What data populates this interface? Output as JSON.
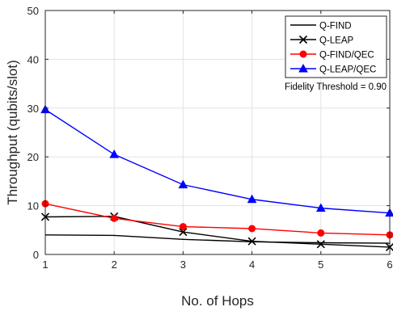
{
  "chart_data": {
    "type": "line",
    "title": "",
    "xlabel": "No. of Hops",
    "ylabel": "Throughput (qubits/slot)",
    "x": [
      1,
      2,
      3,
      4,
      5,
      6
    ],
    "xlim": [
      1,
      6
    ],
    "ylim": [
      0,
      50
    ],
    "xticks": [
      "1",
      "2",
      "3",
      "4",
      "5",
      "6"
    ],
    "yticks": [
      "0",
      "10",
      "20",
      "30",
      "40",
      "50"
    ],
    "grid": true,
    "legend_position": "top-right",
    "annotation": "Fidelity Threshold = 0.90",
    "series": [
      {
        "name": "Q-FIND",
        "color": "#000000",
        "marker": "none",
        "values": [
          4.0,
          3.9,
          3.1,
          2.6,
          2.4,
          2.3
        ]
      },
      {
        "name": "Q-LEAP",
        "color": "#000000",
        "marker": "x",
        "values": [
          7.7,
          7.8,
          4.6,
          2.7,
          2.1,
          1.5
        ]
      },
      {
        "name": "Q-FIND/QEC",
        "color": "#ff0000",
        "marker": "circle",
        "values": [
          10.4,
          7.4,
          5.7,
          5.3,
          4.4,
          4.0
        ]
      },
      {
        "name": "Q-LEAP/QEC",
        "color": "#0000ff",
        "marker": "triangle",
        "values": [
          29.7,
          20.5,
          14.3,
          11.3,
          9.5,
          8.5
        ]
      }
    ]
  }
}
